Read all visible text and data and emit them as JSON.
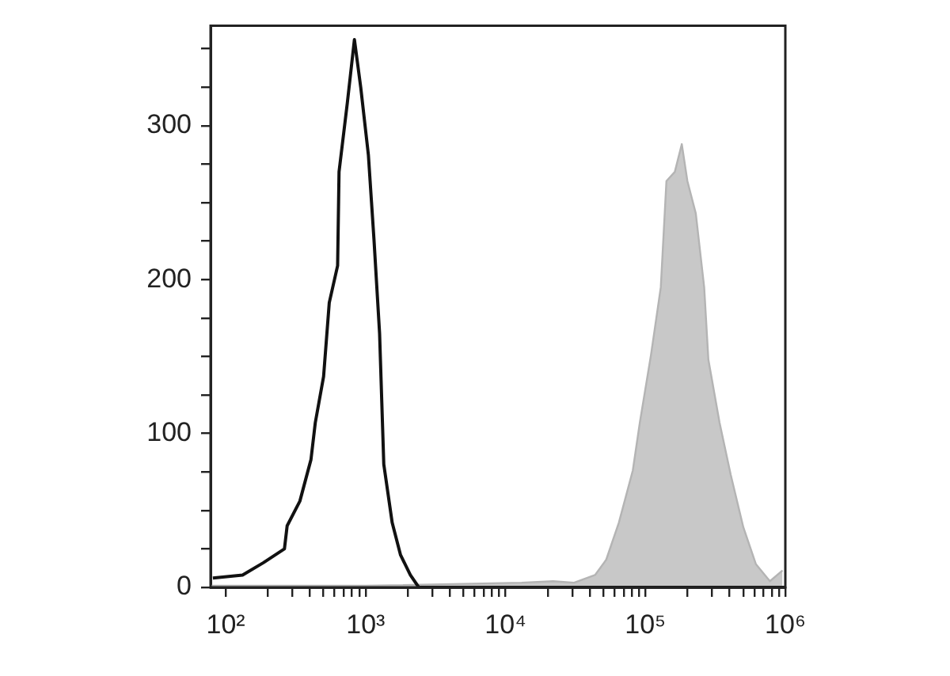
{
  "chart_data": {
    "type": "line",
    "log": "x",
    "grid": false,
    "legend": false,
    "marker": "none",
    "line_style": "solid",
    "xlim": [
      78,
      1000000
    ],
    "xticks": [
      {
        "value": 100,
        "label": "10²"
      },
      {
        "value": 200,
        "label": null
      },
      {
        "value": 300,
        "label": null
      },
      {
        "value": 400,
        "label": null
      },
      {
        "value": 500,
        "label": null
      },
      {
        "value": 600,
        "label": null
      },
      {
        "value": 700,
        "label": null
      },
      {
        "value": 800,
        "label": null
      },
      {
        "value": 900,
        "label": null
      },
      {
        "value": 1000,
        "label": "10³"
      },
      {
        "value": 2000,
        "label": null
      },
      {
        "value": 3000,
        "label": null
      },
      {
        "value": 4000,
        "label": null
      },
      {
        "value": 5000,
        "label": null
      },
      {
        "value": 6000,
        "label": null
      },
      {
        "value": 7000,
        "label": null
      },
      {
        "value": 8000,
        "label": null
      },
      {
        "value": 9000,
        "label": null
      },
      {
        "value": 10000,
        "label": "10⁴"
      },
      {
        "value": 20000,
        "label": null
      },
      {
        "value": 30000,
        "label": null
      },
      {
        "value": 40000,
        "label": null
      },
      {
        "value": 50000,
        "label": null
      },
      {
        "value": 60000,
        "label": null
      },
      {
        "value": 70000,
        "label": null
      },
      {
        "value": 80000,
        "label": null
      },
      {
        "value": 90000,
        "label": null
      },
      {
        "value": 100000,
        "label": "10⁵"
      },
      {
        "value": 200000,
        "label": null
      },
      {
        "value": 300000,
        "label": null
      },
      {
        "value": 400000,
        "label": null
      },
      {
        "value": 500000,
        "label": null
      },
      {
        "value": 600000,
        "label": null
      },
      {
        "value": 700000,
        "label": null
      },
      {
        "value": 800000,
        "label": null
      },
      {
        "value": 900000,
        "label": null
      },
      {
        "value": 1000000,
        "label": "10⁶"
      }
    ],
    "ylim": [
      0,
      365
    ],
    "yticks": [
      0,
      {
        "value": 25,
        "label": null
      },
      {
        "value": 50,
        "label": null
      },
      {
        "value": 75,
        "label": null
      },
      100,
      {
        "value": 125,
        "label": null
      },
      {
        "value": 150,
        "label": null
      },
      {
        "value": 175,
        "label": null
      },
      200,
      {
        "value": 225,
        "label": null
      },
      {
        "value": 250,
        "label": null
      },
      {
        "value": 275,
        "label": null
      },
      300,
      {
        "value": 325,
        "label": null
      },
      {
        "value": 350,
        "label": null
      }
    ],
    "series": [
      {
        "type": "area",
        "color": "#b4b4b4",
        "x": [
          79,
          1000,
          13030,
          21880,
          30900,
          43650,
          52480,
          64570,
          81280,
          91200,
          109600,
          128800,
          141300,
          162200,
          182000,
          199500,
          229100,
          263000,
          281800,
          338800,
          407400,
          501200,
          616600,
          776200,
          955000
        ],
        "values": [
          1,
          1,
          3,
          4,
          3,
          8,
          18,
          42,
          76,
          107,
          151,
          195,
          264,
          270,
          288,
          264,
          243,
          195,
          148,
          107,
          73,
          39,
          15,
          4,
          11
        ]
      },
      {
        "type": "line",
        "color": "#111111",
        "x": [
          81,
          132,
          186,
          263,
          275,
          339,
          407,
          437,
          501,
          550,
          631,
          646,
          741,
          832,
          923,
          1047,
          1148,
          1259,
          1349,
          1549,
          1778,
          2089,
          2399,
          10000,
          1000000
        ],
        "values": [
          6,
          8,
          16,
          25,
          40,
          56,
          83,
          107,
          137,
          185,
          209,
          270,
          315,
          356,
          325,
          281,
          226,
          165,
          80,
          42,
          21,
          8,
          0,
          0,
          0
        ]
      }
    ]
  }
}
